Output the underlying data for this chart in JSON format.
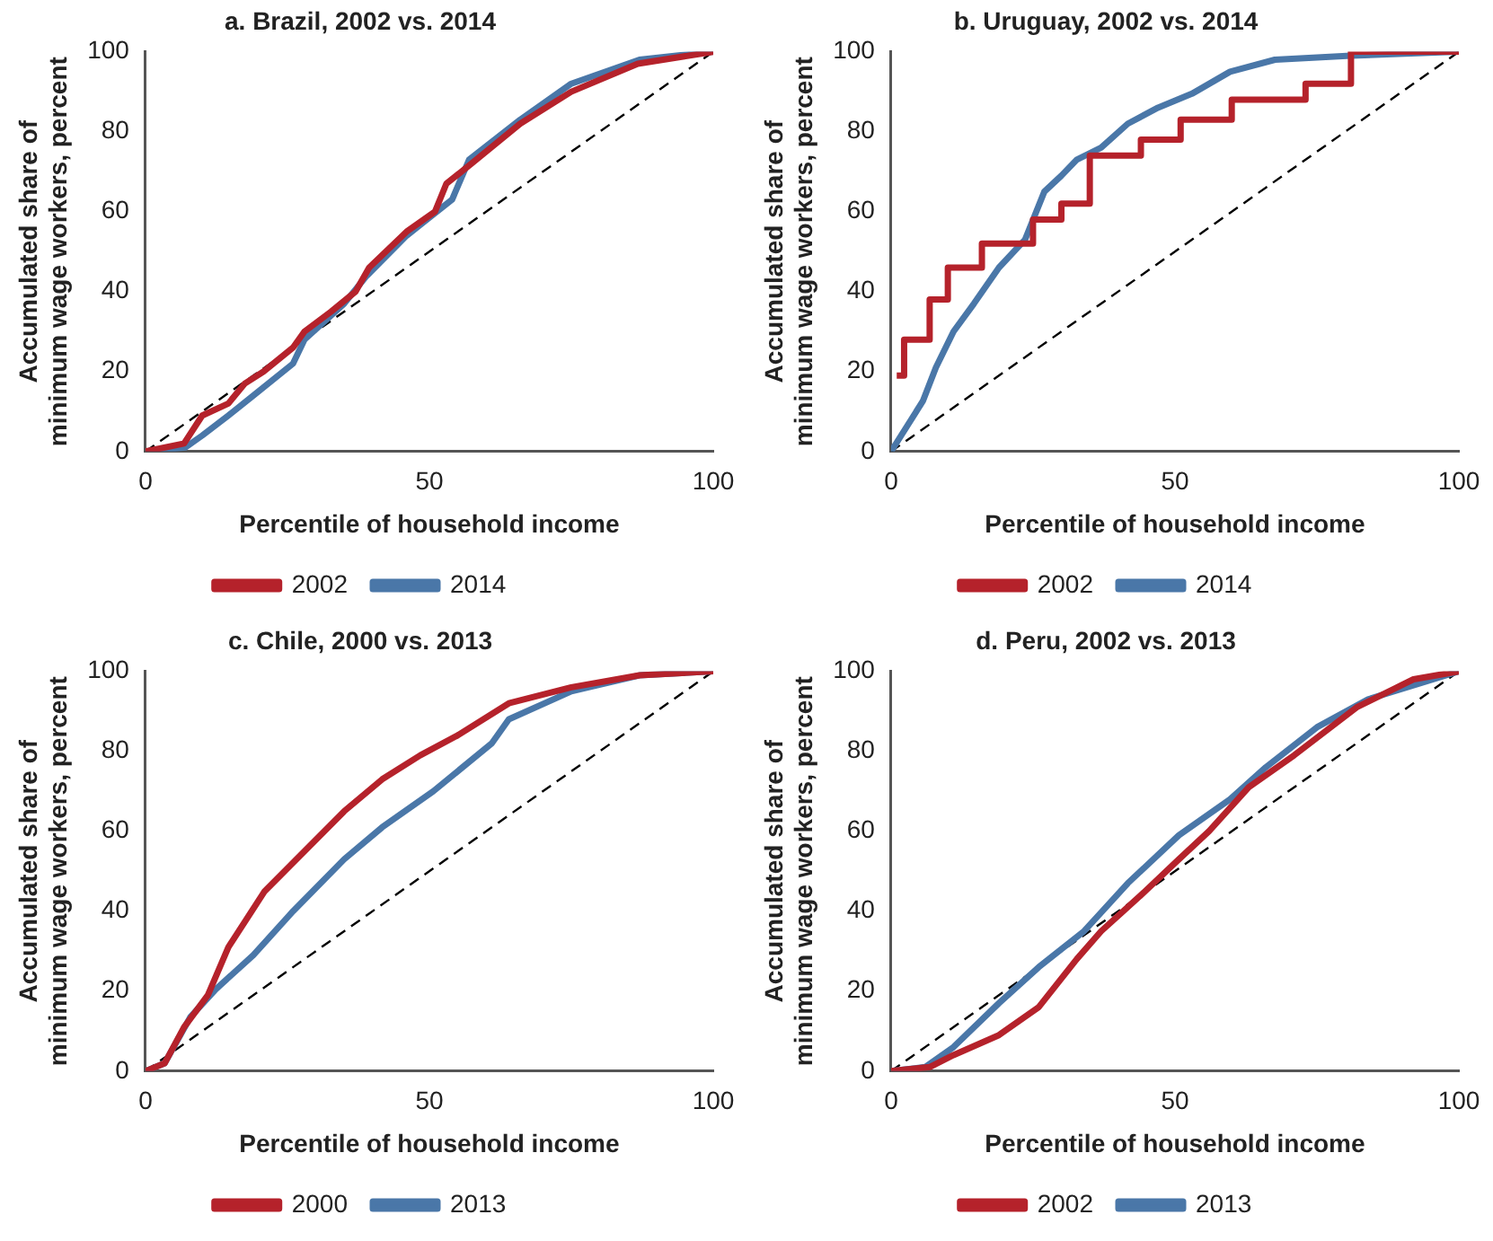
{
  "chart_data": [
    {
      "type": "line",
      "title": "a. Brazil, 2002 vs. 2014",
      "xlabel": "Percentile of household income",
      "ylabel": "Accumulated share of\nminimum wage workers, percent",
      "xlim": [
        0,
        100
      ],
      "ylim": [
        0,
        100
      ],
      "xticks": [
        0,
        50,
        100
      ],
      "yticks": [
        0,
        20,
        40,
        60,
        80,
        100
      ],
      "grid": false,
      "legend": "bottom",
      "marker": "none",
      "series": [
        {
          "name": "2002",
          "color": "#b5222b",
          "x": [
            0,
            6.8,
            10,
            14.6,
            17.5,
            20.8,
            26,
            28,
            32.7,
            37,
            39.4,
            46,
            51,
            53,
            57.4,
            66,
            75,
            86.7,
            100
          ],
          "values": [
            0,
            2,
            9,
            12,
            17,
            20,
            26,
            30,
            35,
            40,
            46,
            55,
            60,
            67,
            72,
            82,
            90,
            97,
            100
          ]
        },
        {
          "name": "2014",
          "color": "#4a77a8",
          "x": [
            0,
            7,
            10,
            14.6,
            19,
            26,
            28,
            35,
            39,
            46,
            54,
            57,
            66,
            75,
            87,
            100
          ],
          "values": [
            0,
            1,
            4,
            9,
            14,
            22,
            28,
            37,
            44,
            54,
            63,
            73,
            83,
            92,
            98,
            100
          ]
        },
        {
          "type": "line",
          "color": "#000000",
          "line_style": "dashed",
          "x": [
            0,
            100
          ],
          "values": [
            0,
            100
          ]
        }
      ]
    },
    {
      "type": "line",
      "title": "b. Uruguay, 2002 vs. 2014",
      "xlabel": "Percentile of household income",
      "ylabel": "Accumulated share of\nminimum wage workers, percent",
      "xlim": [
        0,
        100
      ],
      "ylim": [
        0,
        100
      ],
      "xticks": [
        0,
        50,
        100
      ],
      "yticks": [
        0,
        20,
        40,
        60,
        80,
        100
      ],
      "grid": false,
      "legend": "bottom",
      "marker": "none",
      "series": [
        {
          "name": "2002",
          "type": "step",
          "color": "#b5222b",
          "x": [
            1,
            2.3,
            6.8,
            10,
            16,
            25,
            30,
            35,
            44,
            51,
            60,
            73,
            81,
            100
          ],
          "values": [
            19,
            28,
            38,
            46,
            52,
            58,
            62,
            74,
            78,
            83,
            88,
            92,
            100,
            100
          ]
        },
        {
          "name": "2014",
          "color": "#4a77a8",
          "x": [
            0,
            5.6,
            7.9,
            11,
            14.6,
            19,
            23.6,
            27,
            30,
            32.7,
            37,
            41.7,
            47,
            53,
            59.7,
            67.6,
            81,
            100
          ],
          "values": [
            0,
            12.6,
            21,
            30,
            37,
            46,
            53,
            65,
            69,
            73,
            76,
            82,
            86,
            89.5,
            95,
            98,
            99,
            100
          ]
        },
        {
          "type": "line",
          "color": "#000000",
          "line_style": "dashed",
          "x": [
            0,
            100
          ],
          "values": [
            0,
            100
          ]
        }
      ]
    },
    {
      "type": "line",
      "title": "c. Chile, 2000 vs. 2013",
      "xlabel": "Percentile of household income",
      "ylabel": "Accumulated share of\nminimum wage workers, percent",
      "xlim": [
        0,
        100
      ],
      "ylim": [
        0,
        100
      ],
      "xticks": [
        0,
        50,
        100
      ],
      "yticks": [
        0,
        20,
        40,
        60,
        80,
        100
      ],
      "grid": false,
      "legend": "bottom",
      "marker": "none",
      "series": [
        {
          "name": "2000",
          "color": "#b5222b",
          "x": [
            0,
            3.4,
            6.8,
            11,
            14.6,
            21,
            28,
            35,
            41.7,
            48.4,
            55,
            64,
            75,
            87,
            100
          ],
          "values": [
            0,
            2,
            11,
            19,
            31,
            45,
            55,
            65,
            73,
            79,
            84,
            92,
            96,
            99,
            100
          ]
        },
        {
          "name": "2013",
          "color": "#4a77a8",
          "x": [
            0,
            3.4,
            7.9,
            12.4,
            19,
            26,
            35,
            41.7,
            50.7,
            61,
            64,
            75,
            87,
            100
          ],
          "values": [
            0,
            2,
            13.5,
            20.5,
            29,
            40,
            53,
            61,
            70,
            82,
            88,
            95,
            99,
            100
          ]
        },
        {
          "type": "line",
          "color": "#000000",
          "line_style": "dashed",
          "x": [
            0,
            100
          ],
          "values": [
            0,
            100
          ]
        }
      ]
    },
    {
      "type": "line",
      "title": "d. Peru, 2002 vs. 2013",
      "xlabel": "Percentile of household income",
      "ylabel": "Accumulated share of\nminimum wage workers, percent",
      "xlim": [
        0,
        100
      ],
      "ylim": [
        0,
        100
      ],
      "xticks": [
        0,
        50,
        100
      ],
      "yticks": [
        0,
        20,
        40,
        60,
        80,
        100
      ],
      "grid": false,
      "legend": "bottom",
      "marker": "none",
      "series": [
        {
          "name": "2002",
          "color": "#b5222b",
          "x": [
            0,
            6.8,
            11,
            19,
            26,
            32.7,
            37,
            44,
            50.7,
            56,
            63,
            71,
            82,
            92,
            100
          ],
          "values": [
            0,
            1,
            4,
            9,
            16,
            28,
            35,
            44,
            53,
            60,
            71,
            79,
            91,
            98,
            100
          ]
        },
        {
          "name": "2013",
          "color": "#4a77a8",
          "x": [
            0,
            6,
            11,
            19,
            26,
            34,
            41.7,
            50.7,
            59.7,
            66,
            75,
            84,
            100
          ],
          "values": [
            0,
            1,
            6,
            17,
            26,
            35,
            47,
            59,
            68,
            76,
            86,
            93,
            100
          ]
        },
        {
          "type": "line",
          "color": "#000000",
          "line_style": "dashed",
          "x": [
            0,
            100
          ],
          "values": [
            0,
            100
          ]
        }
      ]
    }
  ]
}
